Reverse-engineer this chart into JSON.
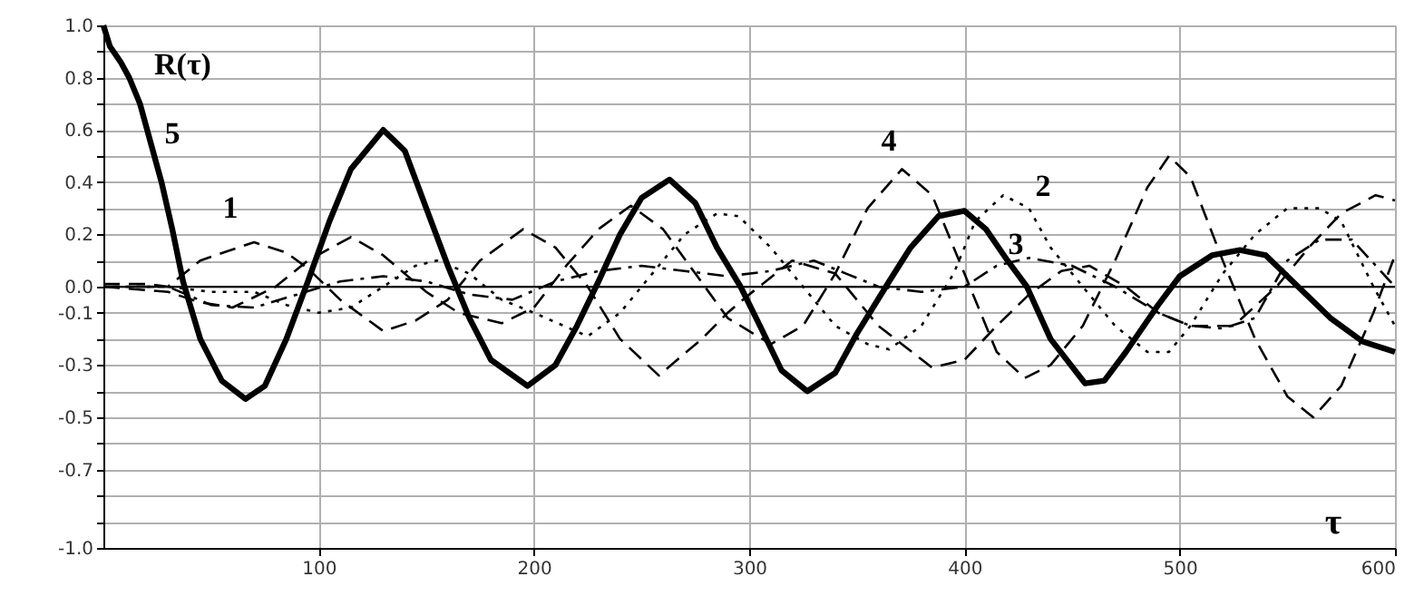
{
  "chart_data": {
    "type": "line",
    "xlabel": "τ",
    "ylabel": "R(τ)",
    "xlim": [
      0,
      600
    ],
    "xticks": [
      100,
      200,
      300,
      400,
      500,
      600
    ],
    "ylim": [
      -1.0,
      1.0
    ],
    "yticks": [
      {
        "value": 1.0,
        "label": "1.0"
      },
      {
        "value": 0.9,
        "label": null
      },
      {
        "value": 0.8,
        "label": "0.8"
      },
      {
        "value": 0.7,
        "label": null
      },
      {
        "value": 0.6,
        "label": "0.6"
      },
      {
        "value": 0.5,
        "label": null
      },
      {
        "value": 0.4,
        "label": "0.4"
      },
      {
        "value": 0.3,
        "label": null
      },
      {
        "value": 0.2,
        "label": "0.2"
      },
      {
        "value": 0.1,
        "label": null
      },
      {
        "value": 0,
        "label": "0.0"
      },
      {
        "value": -0.1,
        "label": "-0.1"
      },
      {
        "value": -0.2,
        "label": null
      },
      {
        "value": -0.3,
        "label": "-0.3"
      },
      {
        "value": -0.4,
        "label": null
      },
      {
        "value": -0.5,
        "label": "-0.5"
      },
      {
        "value": -0.6,
        "label": null
      },
      {
        "value": -0.7,
        "label": "-0.7"
      },
      {
        "value": -0.8,
        "label": null
      },
      {
        "value": -0.9,
        "label": null
      },
      {
        "value": -1.0,
        "label": "-1.0"
      }
    ],
    "grid": true,
    "series": [
      {
        "name": "1",
        "color": "#000000",
        "line_style": "dashed",
        "x": [
          0,
          20,
          30,
          45,
          70,
          85,
          95,
          110,
          130,
          145,
          160,
          175,
          195,
          210,
          225,
          240,
          258,
          278,
          290,
          300,
          320,
          340,
          360,
          385,
          400,
          415,
          430,
          445,
          458,
          475,
          490,
          505,
          525,
          545,
          560,
          575,
          591,
          600
        ],
        "values": [
          0.01,
          0.01,
          0.0,
          0.1,
          0.17,
          0.13,
          0.07,
          -0.05,
          -0.17,
          -0.13,
          -0.05,
          0.1,
          0.22,
          0.15,
          0.0,
          -0.2,
          -0.34,
          -0.2,
          -0.1,
          -0.03,
          0.1,
          0.05,
          -0.15,
          -0.31,
          -0.28,
          -0.15,
          -0.03,
          0.06,
          0.08,
          0.0,
          -0.1,
          -0.15,
          -0.15,
          0.0,
          0.15,
          0.28,
          0.35,
          0.33
        ]
      },
      {
        "name": "2",
        "color": "#000000",
        "line_style": "dotted",
        "x": [
          0,
          30,
          50,
          70,
          85,
          100,
          115,
          130,
          145,
          155,
          170,
          185,
          200,
          225,
          240,
          255,
          270,
          285,
          295,
          310,
          325,
          340,
          355,
          365,
          380,
          395,
          405,
          418,
          430,
          440,
          455,
          470,
          485,
          495,
          505,
          520,
          535,
          550,
          565,
          575,
          590,
          600
        ],
        "values": [
          0.0,
          0.0,
          -0.02,
          -0.02,
          -0.07,
          -0.1,
          -0.08,
          0.0,
          0.08,
          0.1,
          0.05,
          -0.05,
          -0.1,
          -0.19,
          -0.1,
          0.05,
          0.2,
          0.28,
          0.27,
          0.15,
          0.0,
          -0.15,
          -0.22,
          -0.24,
          -0.15,
          0.05,
          0.25,
          0.35,
          0.3,
          0.15,
          0.0,
          -0.15,
          -0.25,
          -0.25,
          -0.15,
          0.05,
          0.2,
          0.3,
          0.3,
          0.25,
          0.0,
          -0.15
        ]
      },
      {
        "name": "3",
        "color": "#000000",
        "line_style": "dashdot",
        "x": [
          0,
          30,
          50,
          70,
          90,
          110,
          130,
          150,
          170,
          190,
          210,
          230,
          250,
          270,
          290,
          310,
          330,
          345,
          360,
          380,
          400,
          415,
          430,
          450,
          470,
          490,
          505,
          520,
          535,
          550,
          565,
          580,
          600
        ],
        "values": [
          0.0,
          0.0,
          -0.07,
          -0.08,
          -0.03,
          0.02,
          0.04,
          0.02,
          -0.03,
          -0.05,
          0.02,
          0.06,
          0.08,
          0.06,
          0.04,
          0.06,
          0.1,
          0.05,
          0.0,
          -0.02,
          0.0,
          0.08,
          0.11,
          0.08,
          0.0,
          -0.1,
          -0.15,
          -0.16,
          -0.12,
          0.1,
          0.18,
          0.18,
          0.0
        ]
      },
      {
        "name": "4",
        "color": "#000000",
        "line_style": "dashed",
        "x": [
          0,
          30,
          45,
          60,
          80,
          95,
          115,
          130,
          150,
          165,
          185,
          200,
          215,
          230,
          245,
          260,
          275,
          290,
          310,
          325,
          340,
          355,
          371,
          385,
          400,
          415,
          428,
          440,
          455,
          470,
          485,
          495,
          505,
          520,
          535,
          550,
          562,
          575,
          590,
          600
        ],
        "values": [
          0.0,
          -0.02,
          -0.06,
          -0.08,
          0.0,
          0.1,
          0.19,
          0.12,
          -0.02,
          -0.1,
          -0.14,
          -0.08,
          0.08,
          0.22,
          0.31,
          0.22,
          0.05,
          -0.12,
          -0.22,
          -0.15,
          0.05,
          0.3,
          0.45,
          0.35,
          0.05,
          -0.25,
          -0.35,
          -0.3,
          -0.15,
          0.1,
          0.38,
          0.5,
          0.42,
          0.1,
          -0.2,
          -0.42,
          -0.5,
          -0.38,
          -0.1,
          0.12
        ]
      },
      {
        "name": "5",
        "color": "#000000",
        "line_style": "solid",
        "x": [
          0,
          3,
          8,
          12,
          17,
          22,
          27,
          32,
          37,
          45,
          55,
          66,
          75,
          85,
          95,
          105,
          115,
          130,
          140,
          150,
          160,
          170,
          180,
          197,
          210,
          220,
          230,
          240,
          250,
          263,
          275,
          285,
          296,
          305,
          315,
          327,
          340,
          350,
          365,
          375,
          388,
          400,
          410,
          420,
          429,
          440,
          456,
          465,
          475,
          490,
          500,
          515,
          528,
          540,
          555,
          570,
          585,
          600
        ],
        "values": [
          1.0,
          0.92,
          0.86,
          0.8,
          0.7,
          0.55,
          0.4,
          0.22,
          0.02,
          -0.2,
          -0.36,
          -0.43,
          -0.38,
          -0.2,
          0.02,
          0.25,
          0.45,
          0.6,
          0.52,
          0.3,
          0.08,
          -0.12,
          -0.28,
          -0.38,
          -0.3,
          -0.15,
          0.02,
          0.2,
          0.34,
          0.41,
          0.32,
          0.15,
          0.0,
          -0.15,
          -0.32,
          -0.4,
          -0.33,
          -0.18,
          0.02,
          0.15,
          0.27,
          0.29,
          0.22,
          0.1,
          0.0,
          -0.2,
          -0.37,
          -0.36,
          -0.25,
          -0.07,
          0.04,
          0.12,
          0.14,
          0.12,
          0.0,
          -0.12,
          -0.21,
          -0.25
        ]
      }
    ]
  }
}
